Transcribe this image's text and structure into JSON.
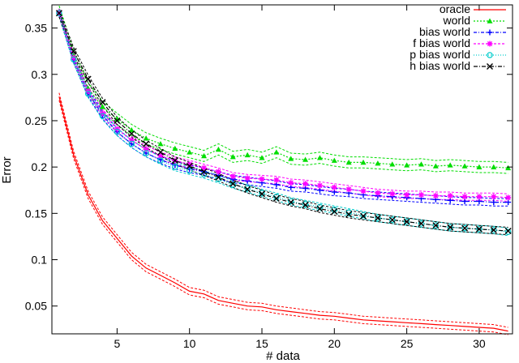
{
  "chart_data": {
    "type": "line",
    "xlabel": "# data",
    "ylabel": "Error",
    "xlim": [
      0.5,
      32.3
    ],
    "ylim": [
      0.02,
      0.375
    ],
    "x_ticks": [
      5,
      10,
      15,
      20,
      25,
      30
    ],
    "y_ticks": [
      0.05,
      0.1,
      0.15,
      0.2,
      0.25,
      0.3,
      0.35
    ],
    "x_tick_labels": [
      "5",
      "10",
      "15",
      "20",
      "25",
      "30"
    ],
    "y_tick_labels": [
      "0.05",
      "0.1",
      "0.15",
      "0.2",
      "0.25",
      "0.3",
      "0.35"
    ],
    "grid": false,
    "legend_position": "top-right",
    "x": [
      1,
      2,
      3,
      4,
      5,
      6,
      7,
      8,
      9,
      10,
      11,
      12,
      13,
      14,
      15,
      16,
      17,
      18,
      19,
      20,
      21,
      22,
      23,
      24,
      25,
      26,
      27,
      28,
      29,
      30,
      31,
      32
    ],
    "series": [
      {
        "name": "oracle",
        "color": "#ff0000",
        "marker": "none",
        "values": [
          0.276,
          0.213,
          0.17,
          0.142,
          0.123,
          0.104,
          0.091,
          0.083,
          0.075,
          0.066,
          0.063,
          0.056,
          0.053,
          0.05,
          0.049,
          0.046,
          0.044,
          0.042,
          0.04,
          0.039,
          0.037,
          0.035,
          0.034,
          0.033,
          0.032,
          0.031,
          0.03,
          0.029,
          0.028,
          0.027,
          0.026,
          0.023
        ],
        "band": 0.004
      },
      {
        "name": "world",
        "color": "#00dd00",
        "marker": "triangle",
        "values": [
          0.368,
          0.32,
          0.285,
          0.265,
          0.252,
          0.24,
          0.231,
          0.225,
          0.22,
          0.216,
          0.212,
          0.219,
          0.211,
          0.213,
          0.21,
          0.216,
          0.209,
          0.208,
          0.21,
          0.207,
          0.205,
          0.205,
          0.204,
          0.203,
          0.202,
          0.203,
          0.201,
          0.202,
          0.201,
          0.2,
          0.2,
          0.199
        ],
        "band": 0.006
      },
      {
        "name": "bias world",
        "color": "#0000ff",
        "marker": "plus",
        "values": [
          0.367,
          0.316,
          0.28,
          0.256,
          0.238,
          0.225,
          0.215,
          0.208,
          0.202,
          0.198,
          0.195,
          0.191,
          0.187,
          0.185,
          0.183,
          0.181,
          0.178,
          0.177,
          0.175,
          0.173,
          0.172,
          0.17,
          0.169,
          0.168,
          0.167,
          0.166,
          0.165,
          0.164,
          0.163,
          0.163,
          0.162,
          0.162
        ],
        "band": 0.004
      },
      {
        "name": "f bias world",
        "color": "#ff00ff",
        "marker": "star",
        "values": [
          0.367,
          0.318,
          0.282,
          0.258,
          0.241,
          0.229,
          0.219,
          0.212,
          0.207,
          0.203,
          0.199,
          0.195,
          0.19,
          0.188,
          0.187,
          0.186,
          0.183,
          0.182,
          0.18,
          0.178,
          0.176,
          0.174,
          0.172,
          0.171,
          0.17,
          0.17,
          0.169,
          0.169,
          0.168,
          0.168,
          0.168,
          0.167
        ],
        "band": 0.004
      },
      {
        "name": "p bias world",
        "color": "#00cccc",
        "marker": "circle",
        "values": [
          0.366,
          0.316,
          0.279,
          0.255,
          0.238,
          0.225,
          0.215,
          0.207,
          0.2,
          0.196,
          0.192,
          0.187,
          0.181,
          0.177,
          0.172,
          0.168,
          0.163,
          0.16,
          0.157,
          0.154,
          0.151,
          0.148,
          0.145,
          0.143,
          0.141,
          0.139,
          0.137,
          0.135,
          0.134,
          0.133,
          0.132,
          0.13
        ],
        "band": 0.004
      },
      {
        "name": "h bias world",
        "color": "#000000",
        "marker": "cross",
        "values": [
          0.366,
          0.325,
          0.295,
          0.27,
          0.25,
          0.236,
          0.225,
          0.216,
          0.207,
          0.201,
          0.195,
          0.189,
          0.182,
          0.176,
          0.171,
          0.166,
          0.162,
          0.159,
          0.155,
          0.152,
          0.149,
          0.147,
          0.145,
          0.143,
          0.141,
          0.139,
          0.137,
          0.135,
          0.134,
          0.133,
          0.132,
          0.131
        ],
        "band": 0.004
      }
    ]
  }
}
